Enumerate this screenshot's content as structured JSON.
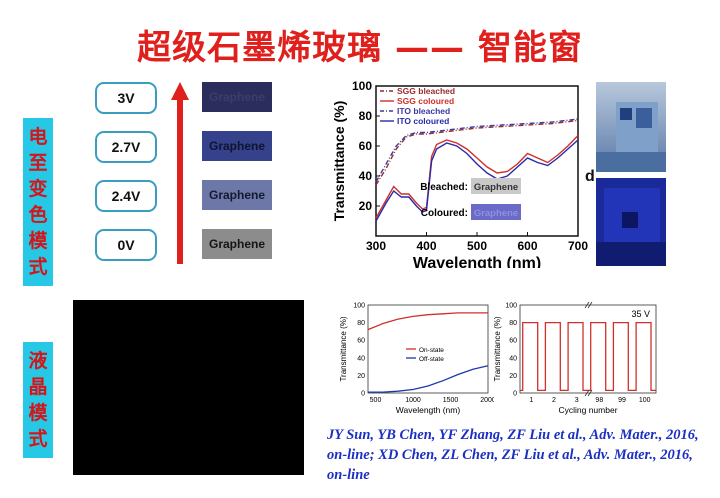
{
  "title": "超级石墨烯玻璃 —— 智能窗",
  "side_labels": {
    "electrochromic": [
      "电",
      "至",
      "变",
      "色",
      "模",
      "式"
    ],
    "liquid_crystal": [
      "液",
      "晶",
      "模",
      "式"
    ]
  },
  "voltages": [
    "3V",
    "2.7V",
    "2.4V",
    "0V"
  ],
  "swatches": [
    {
      "label": "Graphene",
      "bg": "#2b2d5c",
      "fg": "#3a3d6e"
    },
    {
      "label": "Graphene",
      "bg": "#35418a",
      "fg": "#0f1430"
    },
    {
      "label": "Graphene",
      "bg": "#6e78a8",
      "fg": "#141a30"
    },
    {
      "label": "Graphene",
      "bg": "#8c8c8c",
      "fg": "#151515"
    }
  ],
  "photo_label": "d",
  "colors": {
    "title": "#e0201c",
    "tab": "#27c7e6",
    "arrow": "#e0201c",
    "citation": "#1b2fc2",
    "sgg_bleached": "#9b2b2b",
    "sgg_coloured": "#d0302a",
    "ito_bleached": "#3a3aa0",
    "ito_coloured": "#2a2aa8"
  },
  "chart_data": [
    {
      "type": "line",
      "xlabel": "Wavelength (nm)",
      "ylabel": "Transmittance (%)",
      "xlim": [
        300,
        700
      ],
      "ylim": [
        0,
        100
      ],
      "xticks": [
        300,
        400,
        500,
        600,
        700
      ],
      "yticks": [
        20,
        40,
        60,
        80,
        100
      ],
      "legend_position": "top-left",
      "series": [
        {
          "name": "SGG bleached",
          "style": "dash-dot",
          "color": "#9b2b2b",
          "x": [
            300,
            320,
            340,
            360,
            380,
            400,
            450,
            500,
            550,
            600,
            650,
            700
          ],
          "y": [
            34,
            45,
            58,
            66,
            68,
            68,
            70,
            72,
            73,
            74,
            75,
            77
          ]
        },
        {
          "name": "SGG coloured",
          "style": "solid",
          "color": "#d0302a",
          "x": [
            300,
            320,
            335,
            350,
            365,
            380,
            392,
            400,
            410,
            420,
            440,
            460,
            480,
            500,
            520,
            540,
            560,
            580,
            600,
            620,
            640,
            660,
            680,
            700
          ],
          "y": [
            12,
            24,
            33,
            28,
            28,
            22,
            18,
            19,
            53,
            61,
            64,
            62,
            58,
            52,
            46,
            42,
            43,
            48,
            55,
            52,
            49,
            54,
            60,
            67
          ]
        },
        {
          "name": "ITO bleached",
          "style": "dash-dot",
          "color": "#3a3aa0",
          "x": [
            300,
            320,
            340,
            360,
            380,
            400,
            450,
            500,
            550,
            600,
            650,
            700
          ],
          "y": [
            36,
            48,
            60,
            67,
            69,
            69,
            71,
            73,
            74,
            75,
            76,
            78
          ]
        },
        {
          "name": "ITO coloured",
          "style": "solid",
          "color": "#2a2aa8",
          "x": [
            300,
            320,
            335,
            350,
            365,
            380,
            392,
            400,
            410,
            420,
            440,
            460,
            480,
            500,
            520,
            540,
            560,
            580,
            600,
            620,
            640,
            660,
            680,
            700
          ],
          "y": [
            10,
            22,
            30,
            26,
            26,
            20,
            16,
            17,
            50,
            58,
            62,
            60,
            55,
            48,
            42,
            38,
            40,
            46,
            52,
            49,
            47,
            52,
            58,
            64
          ]
        }
      ],
      "annotations": [
        {
          "text": "Bleached:",
          "swatch_label": "Graphene",
          "swatch_bg": "#c9c9c9"
        },
        {
          "text": "Coloured:",
          "swatch_label": "Graphene",
          "swatch_bg": "#6a6ac8"
        }
      ]
    },
    {
      "type": "line",
      "xlabel": "Wavelength (nm)",
      "ylabel": "Transmittance (%)",
      "xlim": [
        400,
        2000
      ],
      "ylim": [
        0,
        100
      ],
      "xticks": [
        500,
        1000,
        1500,
        2000
      ],
      "yticks": [
        0,
        20,
        40,
        60,
        80,
        100
      ],
      "legend_position": "middle-left",
      "series": [
        {
          "name": "On-state",
          "color": "#d0302a",
          "x": [
            400,
            600,
            800,
            1000,
            1200,
            1400,
            1600,
            1800,
            2000
          ],
          "y": [
            72,
            79,
            84,
            87,
            89,
            90,
            91,
            91,
            91
          ]
        },
        {
          "name": "Off-state",
          "color": "#1a3aa8",
          "x": [
            400,
            600,
            800,
            1000,
            1200,
            1400,
            1600,
            1800,
            2000
          ],
          "y": [
            1,
            1,
            2,
            4,
            8,
            14,
            21,
            27,
            31
          ]
        }
      ]
    },
    {
      "type": "line",
      "xlabel": "Cycling number",
      "ylabel": "Transmittance (%)",
      "ylim": [
        0,
        100
      ],
      "xticks": [
        "1",
        "2",
        "3",
        "98",
        "99",
        "100"
      ],
      "yticks": [
        0,
        20,
        40,
        60,
        80,
        100
      ],
      "annotation": "35 V",
      "series": [
        {
          "color": "#d0302a",
          "x": [
            1,
            2,
            3,
            98,
            99,
            100
          ],
          "y_on": 80,
          "y_off": 3
        }
      ]
    }
  ],
  "citation": "JY Sun, YB Chen, YF Zhang, ZF Liu et al., Adv. Mater., 2016, on-line; XD Chen, ZL Chen, ZF Liu et al., Adv. Mater., 2016, on-line"
}
